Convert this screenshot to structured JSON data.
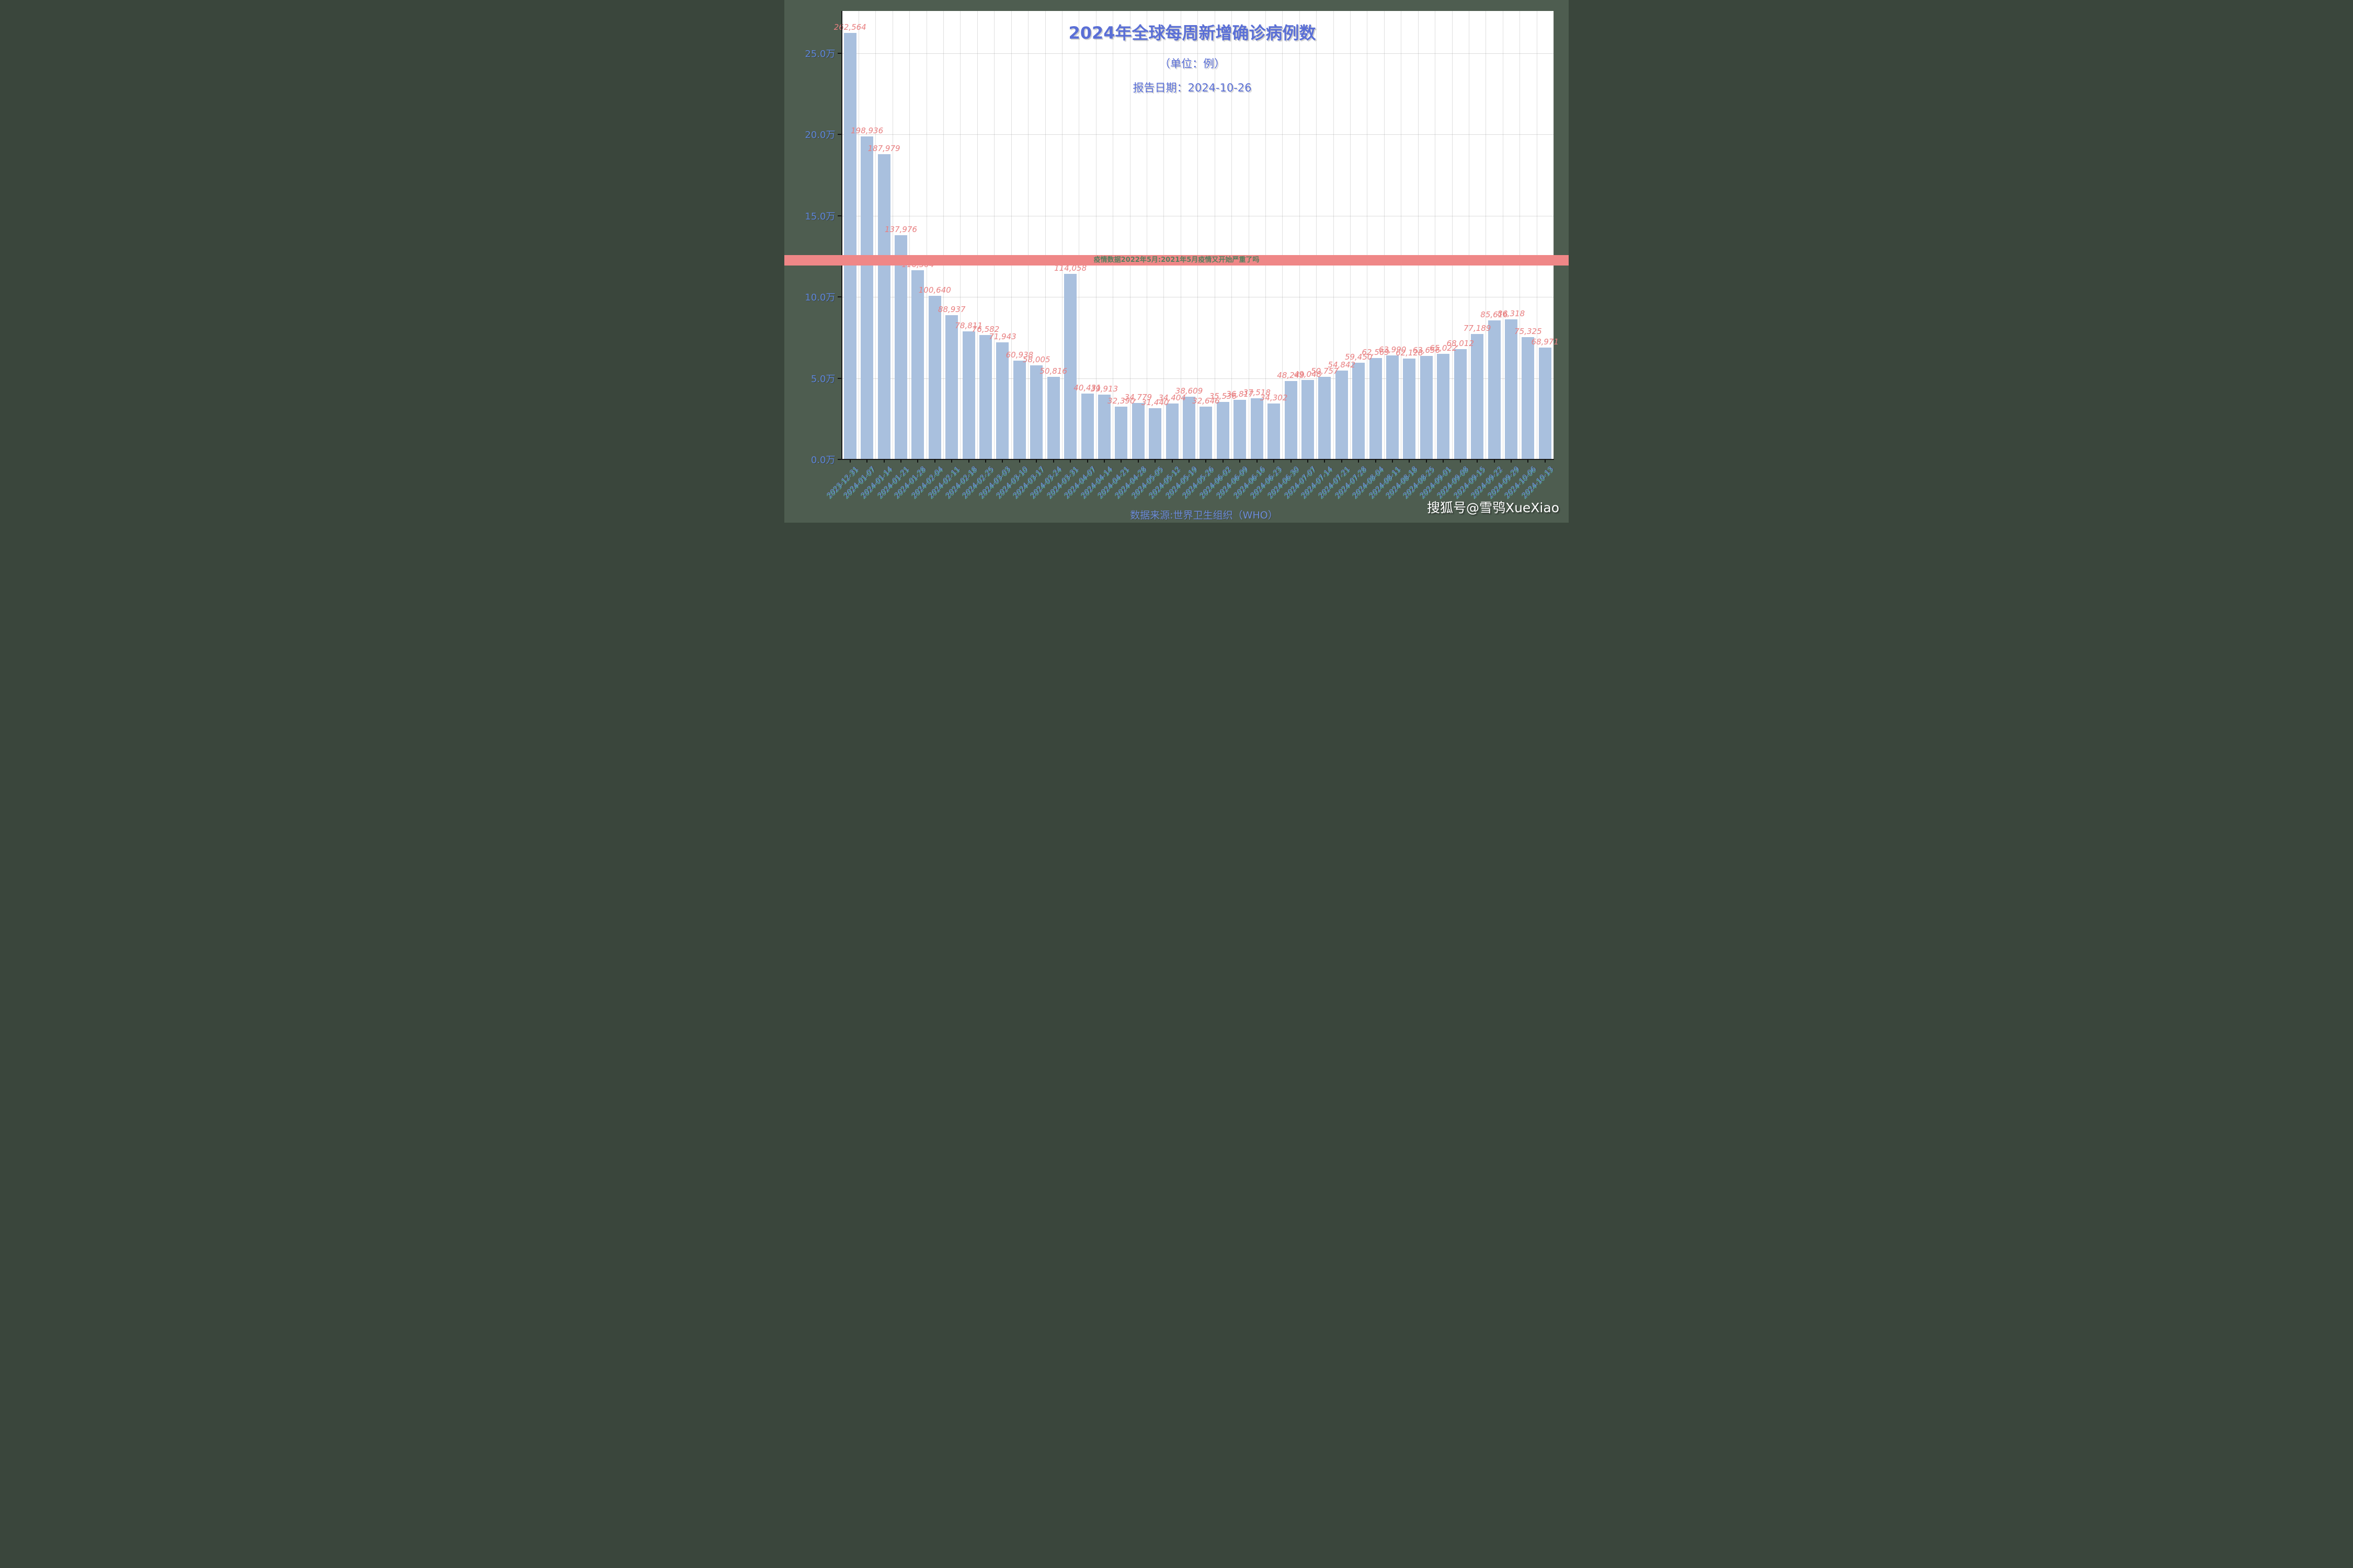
{
  "header": {
    "title": "2024年全球每周新增确诊病例数",
    "subtitle": "（单位：例）",
    "report_date_line": "报告日期：2024-10-26"
  },
  "banner": {
    "text": "疫情数据2022年5月:2021年5月疫情又开始严重了吗",
    "background_color": "#ef8787",
    "text_color": "#55805f"
  },
  "footer": {
    "source_line": "数据来源:世界卫生组织（WHO）",
    "watermark": "搜狐号@雪鸮XueXiao"
  },
  "colors": {
    "page_background": "#4e5d50",
    "plot_background": "#ffffff",
    "bar_fill": "#a9c0de",
    "bar_label": "#e87f80",
    "axis_text": "#5e86d8",
    "title_text": "#5a6fd6",
    "grid_line": "#dcdcdc"
  },
  "chart_data": {
    "type": "bar",
    "title": "2024年全球每周新增确诊病例数",
    "subtitle": "（单位：例）",
    "xlabel": "",
    "ylabel": "",
    "ylim": [
      0,
      276000
    ],
    "grid": "horizontal major (every 50000) + faint vertical per category",
    "legend_position": "none",
    "y_tick_values": [
      0,
      50000,
      100000,
      150000,
      200000,
      250000
    ],
    "y_tick_labels": [
      "0.0万",
      "5.0万",
      "10.0万",
      "15.0万",
      "20.0万",
      "25.0万"
    ],
    "categories": [
      "2023-12-31",
      "2024-01-07",
      "2024-01-14",
      "2024-01-21",
      "2024-01-28",
      "2024-02-04",
      "2024-02-11",
      "2024-02-18",
      "2024-02-25",
      "2024-03-03",
      "2024-03-10",
      "2024-03-17",
      "2024-03-24",
      "2024-03-31",
      "2024-04-07",
      "2024-04-14",
      "2024-04-21",
      "2024-04-28",
      "2024-05-05",
      "2024-05-12",
      "2024-05-19",
      "2024-05-26",
      "2024-06-02",
      "2024-06-09",
      "2024-06-16",
      "2024-06-23",
      "2024-06-30",
      "2024-07-07",
      "2024-07-14",
      "2024-07-21",
      "2024-07-28",
      "2024-08-04",
      "2024-08-11",
      "2024-08-18",
      "2024-08-25",
      "2024-09-01",
      "2024-09-08",
      "2024-09-15",
      "2024-09-22",
      "2024-09-29",
      "2024-10-06",
      "2024-10-13"
    ],
    "values": [
      262564,
      198936,
      187979,
      137976,
      116504,
      100640,
      88937,
      78811,
      76582,
      71943,
      60938,
      58005,
      50816,
      114058,
      40431,
      39913,
      32390,
      34779,
      31440,
      34404,
      38609,
      32646,
      35536,
      36817,
      37518,
      34302,
      48249,
      49048,
      50757,
      54842,
      59450,
      62569,
      63990,
      62128,
      63656,
      65022,
      68012,
      77189,
      85616,
      86318,
      75325,
      68971
    ],
    "value_labels": [
      "262,564",
      "198,936",
      "187,979",
      "137,976",
      "116,504",
      "100,640",
      "88,937",
      "78,811",
      "76,582",
      "71,943",
      "60,938",
      "58,005",
      "50,816",
      "114,058",
      "40,431",
      "39,913",
      "32,390",
      "34,779",
      "31,440",
      "34,404",
      "38,609",
      "32,646",
      "35,536",
      "36,817",
      "37,518",
      "34,302",
      "48,249",
      "49,048",
      "50,757",
      "54,842",
      "59,450",
      "62,569",
      "63,990",
      "62,128",
      "63,656",
      "65,022",
      "68,012",
      "77,189",
      "85,616",
      "86,318",
      "75,325",
      "68,971"
    ]
  },
  "layout_note_visible_values_only": true
}
